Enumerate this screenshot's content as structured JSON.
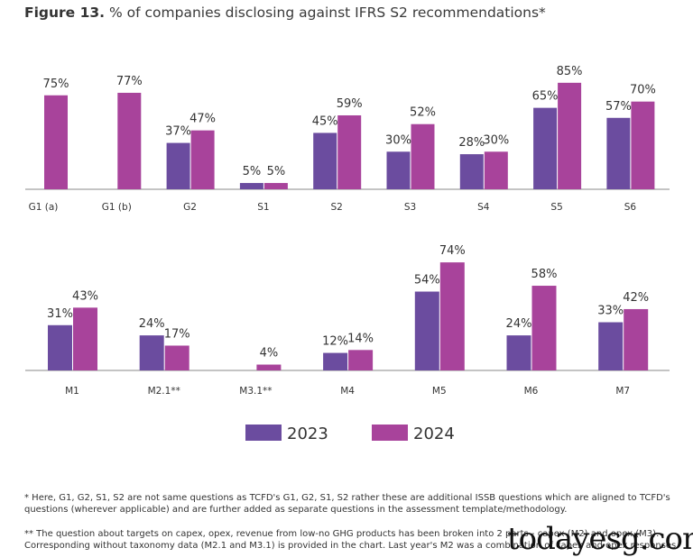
{
  "title_prefix": "Figure 13.",
  "title": "% of companies disclosing against IFRS S2 recommendations*",
  "chart_data": [
    {
      "type": "bar",
      "categories": [
        "G1 (a)",
        "G1 (b)",
        "G2",
        "S1",
        "S2",
        "S3",
        "S4",
        "S5",
        "S6"
      ],
      "series": [
        {
          "name": "2023",
          "color": "#6b4c9f",
          "values": [
            null,
            null,
            37,
            5,
            45,
            30,
            28,
            65,
            57
          ]
        },
        {
          "name": "2024",
          "color": "#a8439b",
          "values": [
            75,
            77,
            47,
            5,
            59,
            52,
            30,
            85,
            70
          ]
        }
      ],
      "unit": "%",
      "grid": false
    },
    {
      "type": "bar",
      "categories": [
        "M1",
        "M2.1**",
        "M3.1**",
        "M4",
        "M5",
        "M6",
        "M7"
      ],
      "series": [
        {
          "name": "2023",
          "color": "#6b4c9f",
          "values": [
            31,
            24,
            null,
            12,
            54,
            24,
            33
          ]
        },
        {
          "name": "2024",
          "color": "#a8439b",
          "values": [
            43,
            17,
            4,
            14,
            74,
            58,
            42
          ]
        }
      ],
      "unit": "%",
      "grid": false,
      "legend": "bottom"
    }
  ],
  "notes": [
    "* Here, G1, G2, S1, S2 are not same questions as TCFD's G1, G2, S1, S2 rather these are additional ISSB questions which are aligned to TCFD's questions (wherever applicable) and are further added as separate questions in the assessment template/methodology.",
    "** The question about targets on capex, opex, revenue from low-no GHG products has been broken into 2 parts - capex (M2) and opex (M3). Corresponding without taxonomy data (M2.1 and M3.1) is provided in the chart. Last year's M2 was a combination of capex and opex responses."
  ],
  "watermark": "todayesg.com"
}
